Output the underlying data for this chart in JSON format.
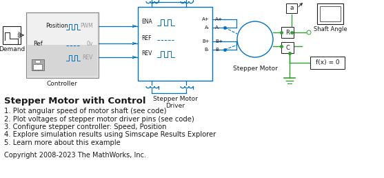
{
  "title": "Stepper Motor with Control",
  "bg_color": "#ffffff",
  "text_items": [
    "1. Plot angular speed of motor shaft (see code)",
    "2. Plot voltages of stepper motor driver pins (see code)",
    "3. Configure stepper controller: Speed, Position",
    "4. Explore simulation results using Simscape Results Explorer",
    "5. Learn more about this example"
  ],
  "copyright": "Copyright 2008-2023 The MathWorks, Inc.",
  "figsize": [
    5.57,
    2.58
  ],
  "dpi": 100,
  "blue": "#0070c0",
  "green": "#2ca02c",
  "dark": "#1a1a1a",
  "gray": "#999999",
  "title_fontsize": 9.5,
  "body_fontsize": 7.2,
  "copy_fontsize": 7.0,
  "diagram_label_controller": "Controller",
  "diagram_label_driver": "Stepper Motor\nDriver",
  "diagram_label_motor": "Stepper Motor",
  "diagram_label_demand": "Demand",
  "diagram_label_shaft": "Shaft Angle"
}
